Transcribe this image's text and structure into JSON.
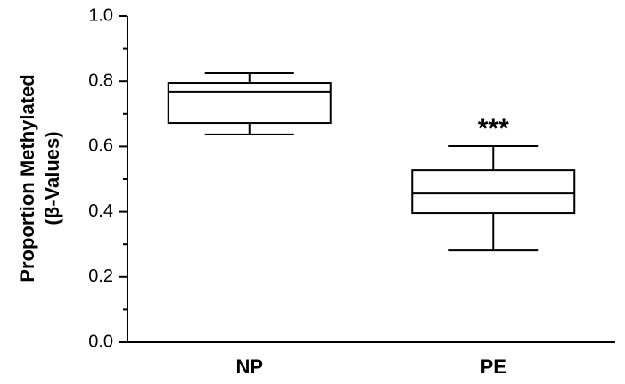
{
  "chart_data": {
    "type": "box",
    "y_label": [
      "Proportion Methylated",
      "(β-Values)"
    ],
    "categories": [
      "NP",
      "PE"
    ],
    "boxes": [
      {
        "whisker_low": 0.637,
        "q1": 0.672,
        "median": 0.768,
        "q3": 0.795,
        "whisker_high": 0.825
      },
      {
        "whisker_low": 0.281,
        "q1": 0.396,
        "median": 0.456,
        "q3": 0.527,
        "whisker_high": 0.601
      }
    ],
    "annotation": "***",
    "color": "#000000",
    "ylim": [
      0,
      1
    ],
    "yticks": [
      {
        "value": 0,
        "label": "0.0"
      },
      0.2,
      0.4,
      0.6,
      0.8,
      {
        "value": 1,
        "label": "1.0"
      }
    ],
    "minor_yticks": [
      0.1,
      0.3,
      0.5,
      0.7,
      0.9
    ]
  }
}
